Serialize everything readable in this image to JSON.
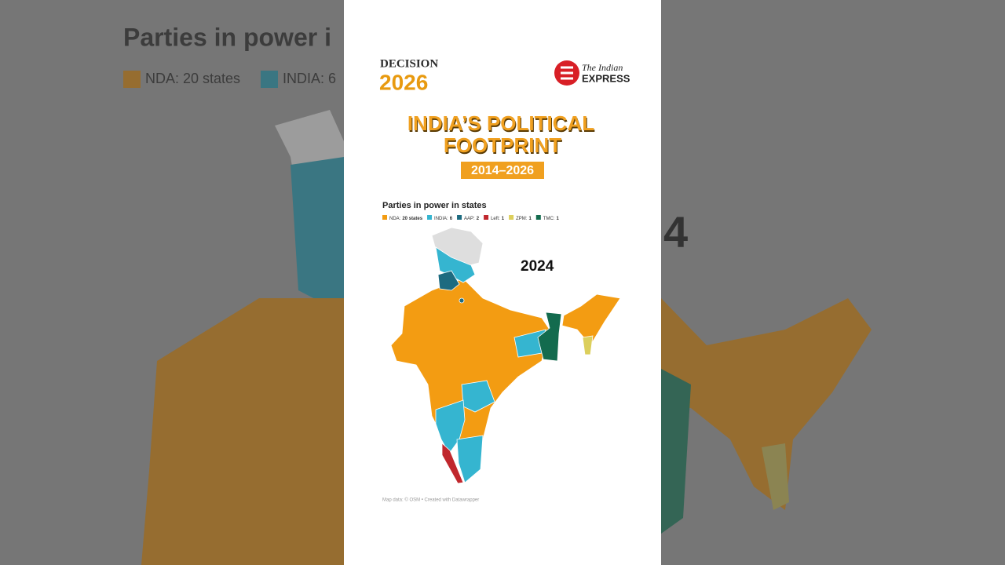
{
  "background": {
    "title": "Parties in power i",
    "legend": [
      "NDA: 20 states",
      "INDIA: 6"
    ],
    "year_fragment": "4"
  },
  "header": {
    "decision_word": "DECISION",
    "decision_year": "2026",
    "publisher_line1": "The Indian",
    "publisher_line2": "EXPRESS"
  },
  "title": {
    "line1": "INDIA’S POLITICAL",
    "line2": "FOOTPRINT",
    "period": "2014–2026"
  },
  "map": {
    "subtitle": "Parties in power in states",
    "legend": [
      {
        "label": "NDA:",
        "value": "20 states",
        "color": "#f39c12"
      },
      {
        "label": "INDIA:",
        "value": "6",
        "color": "#35b5d0"
      },
      {
        "label": "AAP:",
        "value": "2",
        "color": "#1d6b80"
      },
      {
        "label": "Left:",
        "value": "1",
        "color": "#c0272d"
      },
      {
        "label": "ZPM:",
        "value": "1",
        "color": "#dccf5c"
      },
      {
        "label": "TMC:",
        "value": "1",
        "color": "#136b4e"
      }
    ],
    "year": "2024",
    "footer": "Map data: © OSM • Created with Datawrapper"
  }
}
